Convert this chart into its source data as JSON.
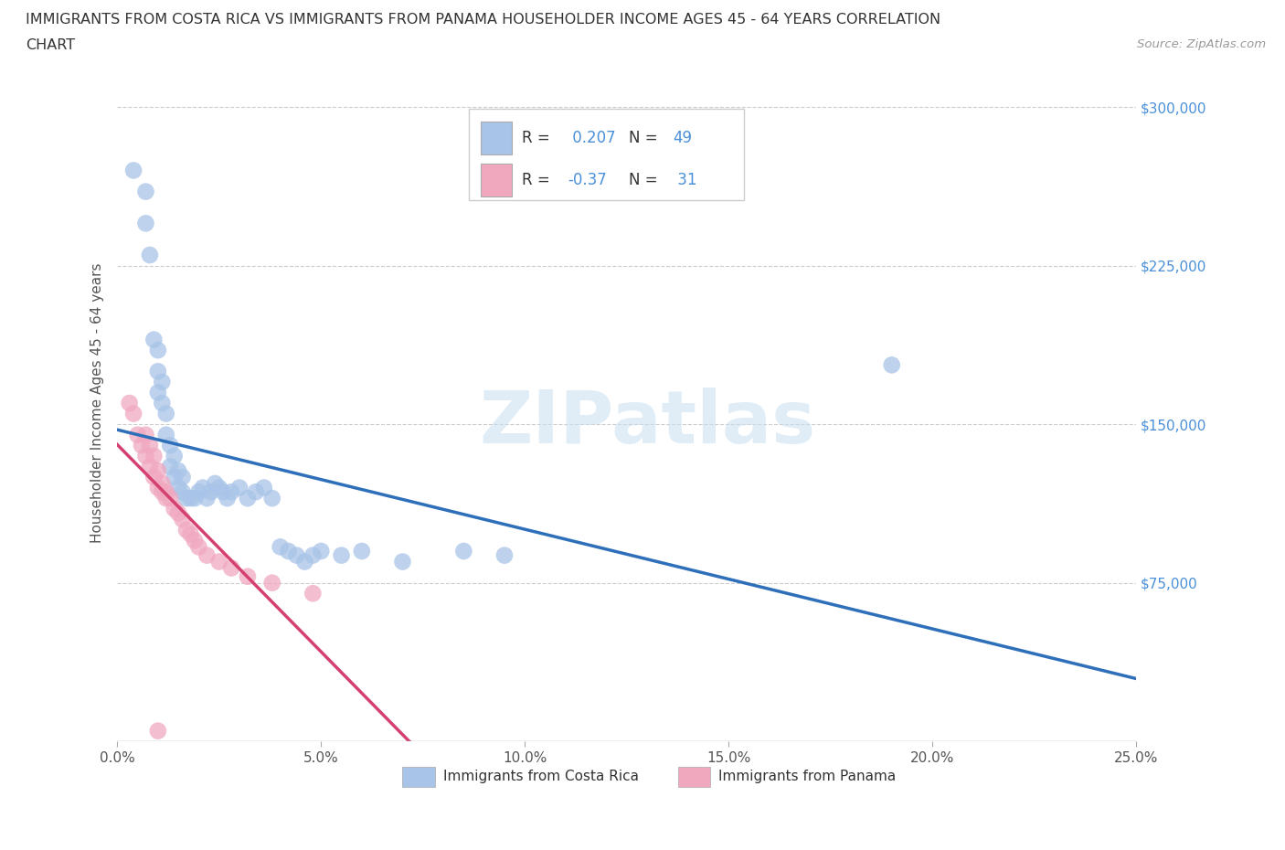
{
  "title_line1": "IMMIGRANTS FROM COSTA RICA VS IMMIGRANTS FROM PANAMA HOUSEHOLDER INCOME AGES 45 - 64 YEARS CORRELATION",
  "title_line2": "CHART",
  "source_text": "Source: ZipAtlas.com",
  "ylabel": "Householder Income Ages 45 - 64 years",
  "xlim": [
    0.0,
    0.25
  ],
  "ylim": [
    0,
    320000
  ],
  "xticks": [
    0.0,
    0.05,
    0.1,
    0.15,
    0.2,
    0.25
  ],
  "xticklabels": [
    "0.0%",
    "5.0%",
    "10.0%",
    "15.0%",
    "20.0%",
    "25.0%"
  ],
  "yticks": [
    0,
    75000,
    150000,
    225000,
    300000
  ],
  "yticklabels_right": [
    "",
    "$75,000",
    "$150,000",
    "$225,000",
    "$300,000"
  ],
  "costa_rica_color": "#a8c4e8",
  "panama_color": "#f0a8bf",
  "costa_rica_line_color": "#2e6fba",
  "panama_line_color": "#d44070",
  "costa_rica_R": 0.207,
  "costa_rica_N": 49,
  "panama_R": -0.37,
  "panama_N": 31,
  "legend_labels": [
    "Immigrants from Costa Rica",
    "Immigrants from Panama"
  ],
  "costa_rica_x": [
    0.004,
    0.007,
    0.007,
    0.008,
    0.009,
    0.01,
    0.01,
    0.01,
    0.011,
    0.011,
    0.012,
    0.012,
    0.013,
    0.013,
    0.014,
    0.014,
    0.015,
    0.015,
    0.016,
    0.016,
    0.017,
    0.018,
    0.019,
    0.02,
    0.021,
    0.022,
    0.023,
    0.024,
    0.025,
    0.026,
    0.027,
    0.028,
    0.03,
    0.032,
    0.034,
    0.036,
    0.038,
    0.04,
    0.042,
    0.044,
    0.046,
    0.048,
    0.05,
    0.055,
    0.06,
    0.07,
    0.085,
    0.095,
    0.19
  ],
  "costa_rica_y": [
    270000,
    260000,
    245000,
    230000,
    190000,
    175000,
    165000,
    185000,
    160000,
    170000,
    145000,
    155000,
    130000,
    140000,
    125000,
    135000,
    120000,
    128000,
    118000,
    125000,
    115000,
    115000,
    115000,
    118000,
    120000,
    115000,
    118000,
    122000,
    120000,
    118000,
    115000,
    118000,
    120000,
    115000,
    118000,
    120000,
    115000,
    92000,
    90000,
    88000,
    85000,
    88000,
    90000,
    88000,
    90000,
    85000,
    90000,
    88000,
    178000
  ],
  "panama_x": [
    0.003,
    0.004,
    0.005,
    0.006,
    0.007,
    0.007,
    0.008,
    0.008,
    0.009,
    0.009,
    0.01,
    0.01,
    0.011,
    0.011,
    0.012,
    0.012,
    0.013,
    0.014,
    0.015,
    0.016,
    0.017,
    0.018,
    0.019,
    0.02,
    0.022,
    0.025,
    0.028,
    0.032,
    0.038,
    0.048,
    0.01
  ],
  "panama_y": [
    160000,
    155000,
    145000,
    140000,
    135000,
    145000,
    130000,
    140000,
    125000,
    135000,
    120000,
    128000,
    118000,
    122000,
    115000,
    118000,
    115000,
    110000,
    108000,
    105000,
    100000,
    98000,
    95000,
    92000,
    88000,
    85000,
    82000,
    78000,
    75000,
    70000,
    5000
  ]
}
